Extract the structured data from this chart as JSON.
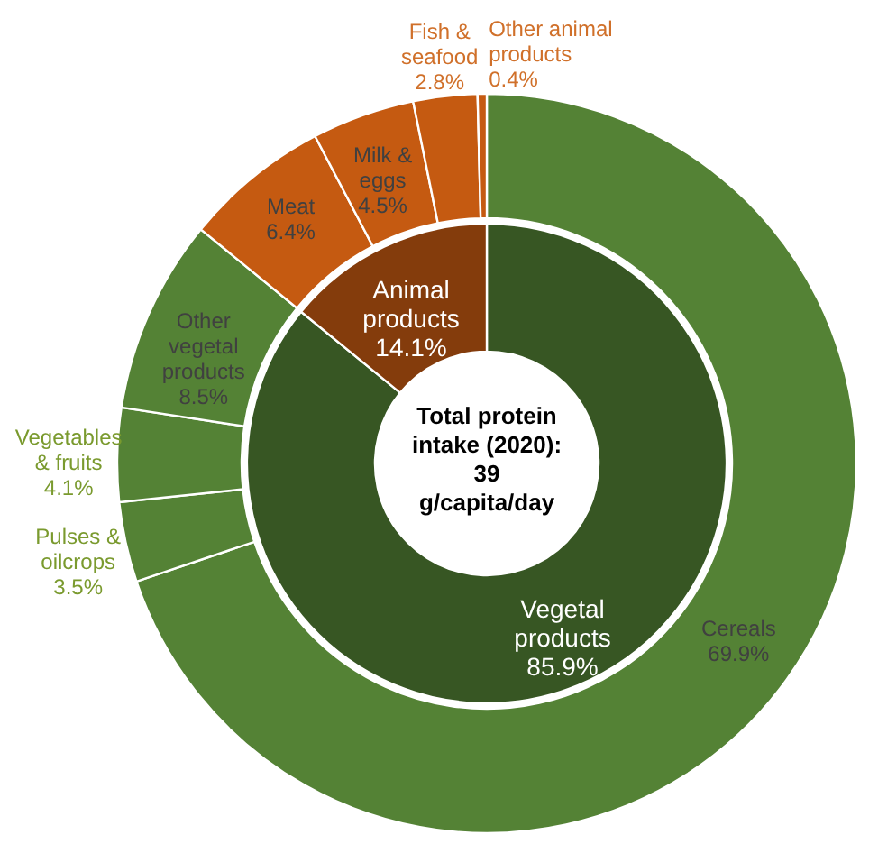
{
  "chart_data": [
    {
      "type": "donut",
      "categories": [
        "Vegetal products",
        "Animal products"
      ],
      "values": [
        85.9,
        14.1
      ],
      "colors": [
        "#375623",
        "#843c0c"
      ],
      "value_labels": [
        "85.9%",
        "14.1%"
      ],
      "annotations": [
        "Total protein intake (2020): 39 g/capita/day"
      ]
    },
    {
      "type": "donut",
      "categories": [
        "Cereals",
        "Pulses & oilcrops",
        "Vegetables & fruits",
        "Other vegetal products",
        "Meat",
        "Milk & eggs",
        "Fish & seafood",
        "Other animal products"
      ],
      "values": [
        69.9,
        3.5,
        4.1,
        8.5,
        6.4,
        4.5,
        2.8,
        0.4
      ],
      "colors": [
        "#548235",
        "#548235",
        "#548235",
        "#548235",
        "#c55a11",
        "#c55a11",
        "#c55a11",
        "#c55a11"
      ],
      "value_labels": [
        "69.9%",
        "3.5%",
        "4.1%",
        "8.5%",
        "6.4%",
        "4.5%",
        "2.8%",
        "0.4%"
      ]
    }
  ]
}
